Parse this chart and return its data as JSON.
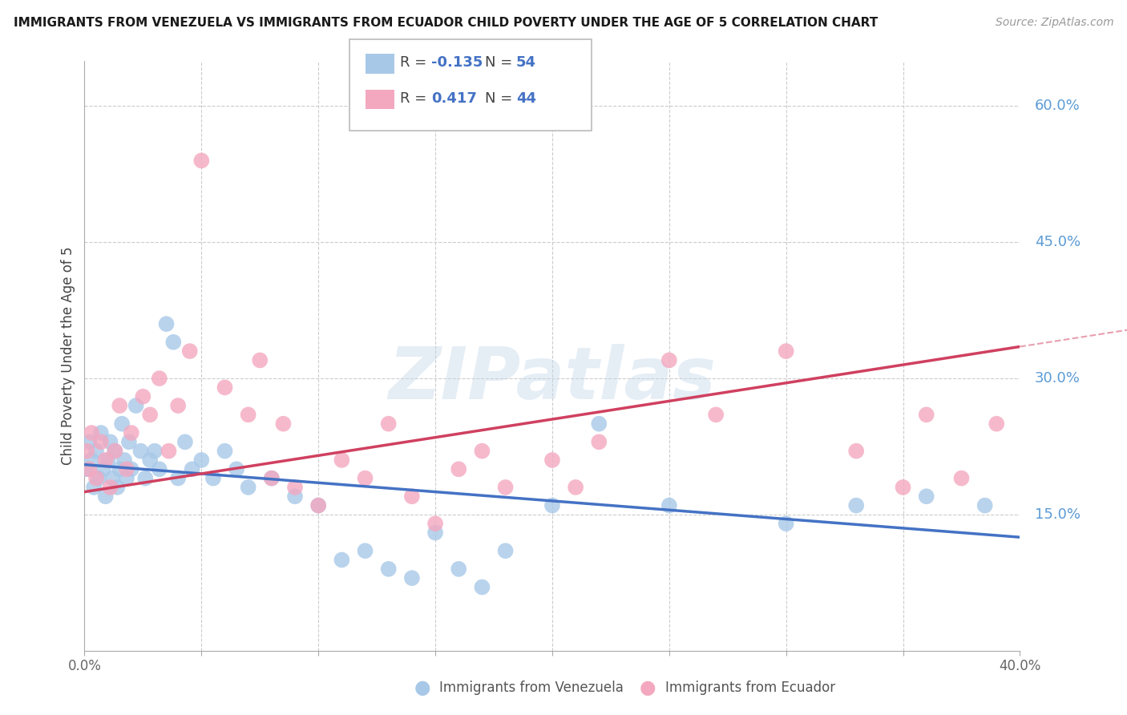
{
  "title": "IMMIGRANTS FROM VENEZUELA VS IMMIGRANTS FROM ECUADOR CHILD POVERTY UNDER THE AGE OF 5 CORRELATION CHART",
  "source": "Source: ZipAtlas.com",
  "ylabel": "Child Poverty Under the Age of 5",
  "ytick_labels": [
    "15.0%",
    "30.0%",
    "45.0%",
    "60.0%"
  ],
  "ytick_values": [
    0.15,
    0.3,
    0.45,
    0.6
  ],
  "xlim": [
    0.0,
    0.4
  ],
  "ylim": [
    0.0,
    0.65
  ],
  "R_venezuela": -0.135,
  "N_venezuela": 54,
  "R_ecuador": 0.417,
  "N_ecuador": 44,
  "color_venezuela": "#a8c8e8",
  "color_ecuador": "#f4a8c0",
  "color_venezuela_line": "#4472c4",
  "color_ecuador_line": "#d04060",
  "watermark": "ZIPatlas",
  "v_line_y0": 0.205,
  "v_line_y1": 0.125,
  "e_line_y0": 0.175,
  "e_line_y1": 0.335,
  "venezuela_x": [
    0.001,
    0.002,
    0.003,
    0.004,
    0.005,
    0.006,
    0.007,
    0.008,
    0.009,
    0.01,
    0.011,
    0.012,
    0.013,
    0.014,
    0.015,
    0.016,
    0.017,
    0.018,
    0.019,
    0.02,
    0.022,
    0.024,
    0.026,
    0.028,
    0.03,
    0.032,
    0.035,
    0.038,
    0.04,
    0.043,
    0.046,
    0.05,
    0.055,
    0.06,
    0.065,
    0.07,
    0.08,
    0.09,
    0.1,
    0.11,
    0.12,
    0.13,
    0.14,
    0.15,
    0.16,
    0.17,
    0.18,
    0.2,
    0.22,
    0.25,
    0.3,
    0.33,
    0.36,
    0.385
  ],
  "venezuela_y": [
    0.2,
    0.23,
    0.21,
    0.18,
    0.22,
    0.19,
    0.24,
    0.2,
    0.17,
    0.21,
    0.23,
    0.19,
    0.22,
    0.18,
    0.2,
    0.25,
    0.21,
    0.19,
    0.23,
    0.2,
    0.27,
    0.22,
    0.19,
    0.21,
    0.22,
    0.2,
    0.36,
    0.34,
    0.19,
    0.23,
    0.2,
    0.21,
    0.19,
    0.22,
    0.2,
    0.18,
    0.19,
    0.17,
    0.16,
    0.1,
    0.11,
    0.09,
    0.08,
    0.13,
    0.09,
    0.07,
    0.11,
    0.16,
    0.25,
    0.16,
    0.14,
    0.16,
    0.17,
    0.16
  ],
  "ecuador_x": [
    0.001,
    0.002,
    0.003,
    0.005,
    0.007,
    0.009,
    0.011,
    0.013,
    0.015,
    0.018,
    0.02,
    0.025,
    0.028,
    0.032,
    0.036,
    0.04,
    0.045,
    0.05,
    0.06,
    0.07,
    0.075,
    0.08,
    0.085,
    0.09,
    0.1,
    0.11,
    0.12,
    0.13,
    0.14,
    0.15,
    0.16,
    0.17,
    0.18,
    0.2,
    0.21,
    0.22,
    0.25,
    0.27,
    0.3,
    0.33,
    0.35,
    0.36,
    0.375,
    0.39
  ],
  "ecuador_y": [
    0.22,
    0.2,
    0.24,
    0.19,
    0.23,
    0.21,
    0.18,
    0.22,
    0.27,
    0.2,
    0.24,
    0.28,
    0.26,
    0.3,
    0.22,
    0.27,
    0.33,
    0.54,
    0.29,
    0.26,
    0.32,
    0.19,
    0.25,
    0.18,
    0.16,
    0.21,
    0.19,
    0.25,
    0.17,
    0.14,
    0.2,
    0.22,
    0.18,
    0.21,
    0.18,
    0.23,
    0.32,
    0.26,
    0.33,
    0.22,
    0.18,
    0.26,
    0.19,
    0.25
  ]
}
